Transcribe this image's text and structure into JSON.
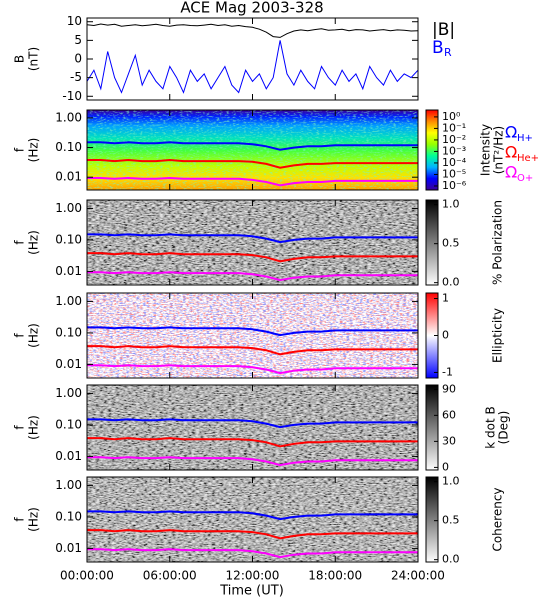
{
  "chart_data": [
    {
      "type": "line",
      "title": "ACE Mag 2003-328",
      "ylabel": [
        "B",
        "(nT)"
      ],
      "x": [
        0,
        0.5,
        1,
        1.5,
        2,
        2.5,
        3,
        3.5,
        4,
        4.5,
        5,
        5.5,
        6,
        6.5,
        7,
        7.5,
        8,
        8.5,
        9,
        9.5,
        10,
        10.5,
        11,
        11.5,
        12,
        12.5,
        13,
        13.5,
        14,
        14.5,
        15,
        15.5,
        16,
        16.5,
        17,
        17.5,
        18,
        18.5,
        19,
        19.5,
        20,
        20.5,
        21,
        21.5,
        22,
        22.5,
        23,
        23.5,
        24
      ],
      "xlim": [
        0,
        24
      ],
      "ylim": [
        -11,
        11
      ],
      "yticks": [
        -10,
        -5,
        0,
        5,
        10
      ],
      "series": [
        {
          "name": "|B|",
          "color": "#000000",
          "values": [
            9.2,
            9.0,
            9.4,
            9.1,
            9.3,
            8.8,
            9.0,
            9.2,
            8.9,
            9.1,
            9.3,
            9.0,
            8.8,
            9.1,
            9.2,
            9.0,
            8.9,
            9.1,
            9.3,
            9.0,
            9.2,
            8.8,
            9.0,
            8.7,
            8.5,
            8.0,
            7.2,
            6.0,
            5.8,
            6.8,
            7.5,
            7.8,
            7.6,
            7.9,
            8.1,
            7.7,
            7.8,
            8.0,
            7.6,
            7.9,
            7.8,
            7.5,
            7.7,
            7.9,
            7.6,
            7.8,
            7.7,
            7.5,
            7.6
          ]
        },
        {
          "name": "B",
          "subscript": "R",
          "color": "#0000ff",
          "values": [
            -6,
            -3,
            -8,
            2,
            -5,
            -9,
            -4,
            1,
            -7,
            -3,
            -6,
            -8,
            -2,
            -5,
            -9,
            -3,
            -6,
            -4,
            -8,
            -5,
            -2,
            -7,
            -9,
            -3,
            -6,
            -4,
            -8,
            -5,
            5,
            -4,
            -7,
            -3,
            -6,
            -8,
            -2,
            -5,
            -7,
            -3,
            -6,
            -4,
            -8,
            -2,
            -5,
            -7,
            -3,
            -6,
            -4,
            -5,
            -3
          ]
        }
      ]
    },
    {
      "type": "spectrogram",
      "ylabel": [
        "f",
        "(Hz)"
      ],
      "log": true,
      "xlim": [
        0,
        24
      ],
      "ylim": [
        0.0037,
        1.85
      ],
      "yticks": [
        {
          "value": 1,
          "label": "1.00"
        },
        {
          "value": 0.1,
          "label": "0.10"
        },
        {
          "value": 0.01,
          "label": "0.01"
        }
      ],
      "x": [
        0,
        1,
        2,
        3,
        4,
        5,
        6,
        7,
        8,
        9,
        10,
        11,
        12,
        13,
        14,
        15,
        16,
        17,
        18,
        19,
        20,
        21,
        22,
        23,
        24
      ],
      "series": [
        {
          "name": "Ω",
          "subscript": "H+",
          "color": "#0000ff",
          "values": [
            0.15,
            0.15,
            0.14,
            0.15,
            0.14,
            0.14,
            0.15,
            0.14,
            0.14,
            0.14,
            0.14,
            0.14,
            0.13,
            0.11,
            0.085,
            0.1,
            0.11,
            0.11,
            0.12,
            0.12,
            0.12,
            0.12,
            0.12,
            0.12,
            0.12
          ]
        },
        {
          "name": "Ω",
          "subscript": "He+",
          "color": "#ff0000",
          "values": [
            0.038,
            0.038,
            0.035,
            0.038,
            0.035,
            0.035,
            0.038,
            0.035,
            0.035,
            0.035,
            0.035,
            0.035,
            0.033,
            0.028,
            0.021,
            0.025,
            0.028,
            0.028,
            0.03,
            0.03,
            0.03,
            0.03,
            0.03,
            0.03,
            0.03
          ]
        },
        {
          "name": "Ω",
          "subscript": "O+",
          "color": "#ff00ff",
          "values": [
            0.0094,
            0.0094,
            0.0088,
            0.0094,
            0.0088,
            0.0088,
            0.0094,
            0.0088,
            0.0088,
            0.0088,
            0.0088,
            0.0088,
            0.0081,
            0.0069,
            0.0053,
            0.0063,
            0.0069,
            0.0069,
            0.0075,
            0.0075,
            0.0075,
            0.0075,
            0.0075,
            0.0075,
            0.0075
          ]
        }
      ],
      "colorbar": {
        "label": [
          "Intensity",
          "(nT²/Hz)"
        ],
        "lim": [
          -6.35,
          0.6
        ],
        "colors": [
          "#3c0096",
          "#0000ff",
          "#00b4ff",
          "#00ff96",
          "#96ff00",
          "#ffff00",
          "#ff8c00",
          "#ff0000"
        ],
        "ticks": [
          {
            "value": 0,
            "label": "10⁰"
          },
          {
            "value": -1,
            "label": "10⁻¹"
          },
          {
            "value": -2,
            "label": "10⁻²"
          },
          {
            "value": -3,
            "label": "10⁻³"
          },
          {
            "value": -4,
            "label": "10⁻⁴"
          },
          {
            "value": -5,
            "label": "10⁻⁵"
          },
          {
            "value": -6,
            "label": "10⁻⁶"
          }
        ]
      }
    },
    {
      "type": "spectrogram",
      "ylabel": [
        "f",
        "(Hz)"
      ],
      "log": true,
      "xlim": [
        0,
        24
      ],
      "ylim": [
        0.0037,
        1.85
      ],
      "yticks": [
        {
          "value": 1,
          "label": "1.00"
        },
        {
          "value": 0.1,
          "label": "0.10"
        },
        {
          "value": 0.01,
          "label": "0.01"
        }
      ],
      "colorbar": {
        "label": [
          "% Polarization"
        ],
        "lim": [
          -0.03,
          1.06
        ],
        "colors": [
          "#ffffff",
          "#000000"
        ],
        "ticks": [
          {
            "value": 0,
            "label": "0.0"
          },
          {
            "value": 0.5,
            "label": "0.5"
          },
          {
            "value": 1,
            "label": "1.0"
          }
        ]
      }
    },
    {
      "type": "spectrogram",
      "ylabel": [
        "f",
        "(Hz)"
      ],
      "log": true,
      "xlim": [
        0,
        24
      ],
      "ylim": [
        0.0037,
        1.85
      ],
      "yticks": [
        {
          "value": 1,
          "label": "1.00"
        },
        {
          "value": 0.1,
          "label": "0.10"
        },
        {
          "value": 0.01,
          "label": "0.01"
        }
      ],
      "colorbar": {
        "label": [
          "Ellipticity"
        ],
        "lim": [
          -1.15,
          1.15
        ],
        "colors": [
          "#0000ff",
          "#ffffff",
          "#ff0000"
        ],
        "ticks": [
          -1,
          0,
          1
        ]
      }
    },
    {
      "type": "spectrogram",
      "ylabel": [
        "f",
        "(Hz)"
      ],
      "log": true,
      "xlim": [
        0,
        24
      ],
      "ylim": [
        0.0037,
        1.85
      ],
      "yticks": [
        {
          "value": 1,
          "label": "1.00"
        },
        {
          "value": 0.1,
          "label": "0.10"
        },
        {
          "value": 0.01,
          "label": "0.01"
        }
      ],
      "colorbar": {
        "label": [
          "k dot B",
          "(Deg)"
        ],
        "lim": [
          -3,
          95
        ],
        "colors": [
          "#ffffff",
          "#000000"
        ],
        "ticks": [
          0,
          30,
          60,
          90
        ]
      }
    },
    {
      "type": "spectrogram",
      "ylabel": [
        "f",
        "(Hz)"
      ],
      "log": true,
      "xlim": [
        0,
        24
      ],
      "ylim": [
        0.0037,
        1.85
      ],
      "yticks": [
        {
          "value": 1,
          "label": "1.00"
        },
        {
          "value": 0.1,
          "label": "0.10"
        },
        {
          "value": 0.01,
          "label": "0.01"
        }
      ],
      "colorbar": {
        "label": [
          "Coherency"
        ],
        "lim": [
          -0.03,
          1.06
        ],
        "colors": [
          "#ffffff",
          "#000000"
        ],
        "ticks": [
          {
            "value": 0,
            "label": "0.0"
          },
          {
            "value": 0.5,
            "label": "0.5"
          },
          {
            "value": 1,
            "label": "1.0"
          }
        ]
      },
      "xlabel": "Time (UT)",
      "xticks": [
        {
          "value": 0,
          "label": "00:00:00"
        },
        {
          "value": 6,
          "label": "06:00:00"
        },
        {
          "value": 12,
          "label": "12:00:00"
        },
        {
          "value": 18,
          "label": "18:00:00"
        },
        {
          "value": 24,
          "label": "24:00:00"
        }
      ]
    }
  ]
}
